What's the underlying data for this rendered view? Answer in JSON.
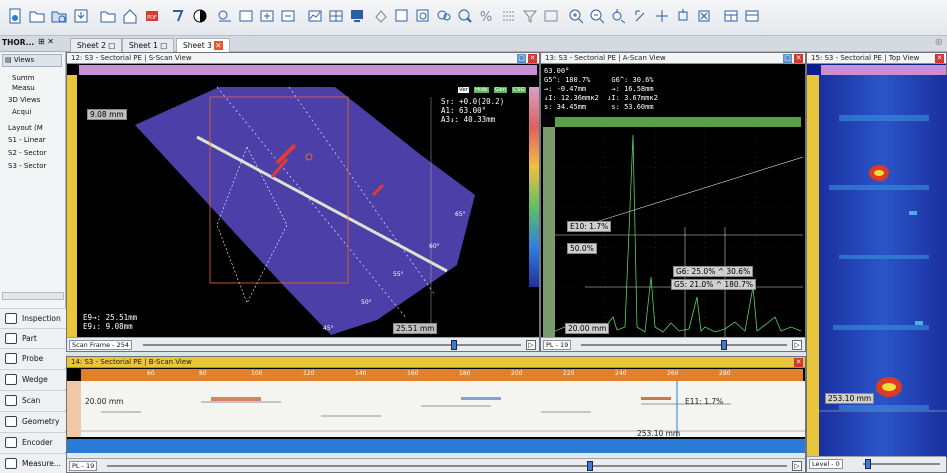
{
  "toolbar": {
    "icons": [
      "new-file-icon",
      "open-folder-icon",
      "open-data-icon",
      "save-icon",
      "folder-icon",
      "home-icon",
      "arrow-icon",
      "contrast-icon",
      "layout-icon",
      "window-icon",
      "window-add-icon",
      "window-remove-icon",
      "chart-icon",
      "grid-icon",
      "monitor-icon",
      "cursor-icon",
      "zoom-box-icon",
      "zoom-data-icon",
      "group-icon",
      "color-icon",
      "percent-icon",
      "list-icon",
      "filter-icon",
      "image-icon",
      "zoom-in-icon",
      "zoom-out-icon",
      "pan-icon",
      "hand-icon",
      "cursor-cross-icon",
      "measure-icon",
      "clear-icon",
      "layout-a-icon",
      "layout-b-icon"
    ]
  },
  "tabs": {
    "app_label": "THOR...",
    "sheet2": "Sheet 2",
    "sheet1": "Sheet 1",
    "sheet3": "Sheet 3"
  },
  "sidebar": {
    "views_label": "Views",
    "tree": [
      "Summ",
      "Measu",
      "3D Views",
      "Acqui",
      "Layout (M",
      "S1 - Linear",
      "S2 - Sector",
      "S3 - Sector"
    ],
    "nav": [
      "Inspection",
      "Part",
      "Probe",
      "Wedge",
      "Scan",
      "Geometry",
      "Encoder",
      "Measure..."
    ]
  },
  "sscan": {
    "title": "12: S3 - Sectorial PE | S-Scan View",
    "readout": "S↑: +0.0(20.2)\nA1: 63.00°\nA3↓: 40.33mm",
    "top_label": "9.08 mm",
    "bottom_readout": "E9→: 25.51mm\nE9↓: 9.08mm",
    "cursor_label": "25.51 mm",
    "angle_labels": [
      "65°",
      "60°",
      "55°",
      "50°",
      "45°"
    ],
    "footer_select": "Scan Frame - 254",
    "tags": [
      "Ver",
      "Hide",
      "Gen",
      "CSG"
    ]
  },
  "ascan": {
    "title": "13: S3 - Sectorial PE | A-Scan View",
    "readout": "63.00°\nG5^: 180.7%     G6^: 30.6%\n→: -0.47mm      →: 16.58mm\n↓I: 12.36mmĸ2  ↓I: 3.67mmĸ2\ns: 34.45mm      s: 53.60mm",
    "e10_label": "E10: 1.7%",
    "pct_label": "50.0%",
    "g6_label": "G6: 25.0% ^ 30.6%",
    "g5_label": "G5: 21.0% ^ 180.7%",
    "bottom_label": "20.00 mm",
    "footer_select": "PL - 19"
  },
  "topview": {
    "title": "15: S3 - Sectorial PE | Top View",
    "label": "253.10 mm",
    "footer_select": "Level - 0"
  },
  "bscan": {
    "title": "14: S3 - Sectorial PE | B-Scan View",
    "left_label": "20.00 mm",
    "e11_label": "E11: 1.7%",
    "cursor_label": "253.10 mm",
    "ruler_ticks": [
      "60",
      "80",
      "100",
      "120",
      "140",
      "160",
      "180",
      "200",
      "220",
      "240",
      "260",
      "280"
    ],
    "footer_select": "PL - 19"
  }
}
